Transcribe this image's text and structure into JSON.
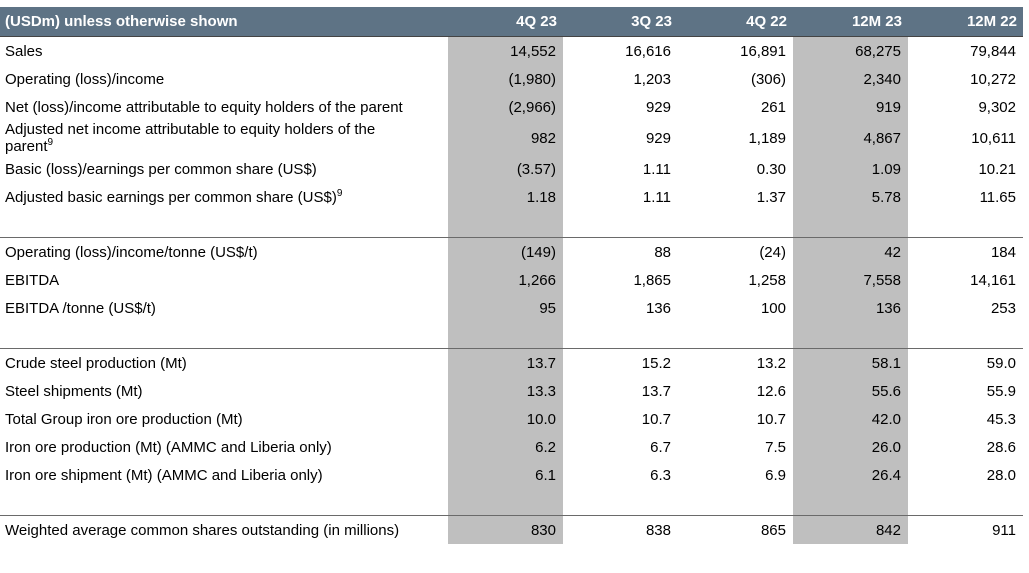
{
  "title": "(USDm) unless otherwise shown",
  "columns": [
    {
      "label": "4Q 23",
      "shaded": true
    },
    {
      "label": "3Q 23",
      "shaded": false
    },
    {
      "label": "4Q 22",
      "shaded": false
    },
    {
      "label": "12M 23",
      "shaded": true
    },
    {
      "label": "12M 22",
      "shaded": false
    }
  ],
  "groups": [
    {
      "rows": [
        {
          "label": "Sales",
          "values": [
            "14,552",
            "16,616",
            "16,891",
            "68,275",
            "79,844"
          ]
        },
        {
          "label": "Operating (loss)/income",
          "values": [
            "(1,980)",
            "1,203",
            "(306)",
            "2,340",
            "10,272"
          ]
        },
        {
          "label": "Net (loss)/income attributable to equity holders of the parent",
          "values": [
            "(2,966)",
            "929",
            "261",
            "919",
            "9,302"
          ]
        },
        {
          "label": "Adjusted net income attributable to equity holders of the parent",
          "note": "9",
          "values": [
            "982",
            "929",
            "1,189",
            "4,867",
            "10,611"
          ]
        },
        {
          "label": "Basic (loss)/earnings per common share (US$)",
          "values": [
            "(3.57)",
            "1.11",
            "0.30",
            "1.09",
            "10.21"
          ]
        },
        {
          "label": "Adjusted basic earnings per common share (US$)",
          "note": "9",
          "values": [
            "1.18",
            "1.11",
            "1.37",
            "5.78",
            "11.65"
          ]
        }
      ]
    },
    {
      "rows": [
        {
          "label": "Operating (loss)/income/tonne (US$/t)",
          "values": [
            "(149)",
            "88",
            "(24)",
            "42",
            "184"
          ]
        },
        {
          "label": "EBITDA",
          "values": [
            "1,266",
            "1,865",
            "1,258",
            "7,558",
            "14,161"
          ]
        },
        {
          "label": "EBITDA /tonne (US$/t)",
          "values": [
            "95",
            "136",
            "100",
            "136",
            "253"
          ]
        }
      ]
    },
    {
      "rows": [
        {
          "label": "Crude steel production (Mt)",
          "values": [
            "13.7",
            "15.2",
            "13.2",
            "58.1",
            "59.0"
          ]
        },
        {
          "label": "Steel shipments (Mt)",
          "values": [
            "13.3",
            "13.7",
            "12.6",
            "55.6",
            "55.9"
          ]
        },
        {
          "label": "Total Group iron ore production (Mt)",
          "values": [
            "10.0",
            "10.7",
            "10.7",
            "42.0",
            "45.3"
          ]
        },
        {
          "label": "Iron ore production (Mt) (AMMC and Liberia only)",
          "values": [
            "6.2",
            "6.7",
            "7.5",
            "26.0",
            "28.6"
          ]
        },
        {
          "label": "Iron ore shipment (Mt) (AMMC and Liberia only)",
          "values": [
            "6.1",
            "6.3",
            "6.9",
            "26.4",
            "28.0"
          ]
        }
      ]
    },
    {
      "rows": [
        {
          "label": "Weighted average common shares outstanding (in millions)",
          "values": [
            "830",
            "838",
            "865",
            "842",
            "911"
          ]
        }
      ]
    }
  ]
}
